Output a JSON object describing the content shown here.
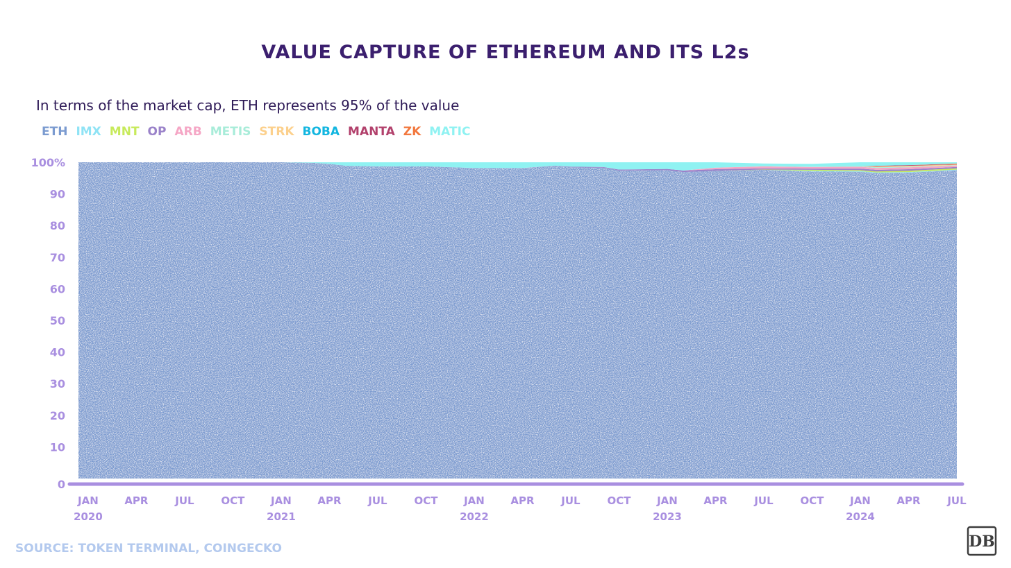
{
  "title": "VALUE CAPTURE OF ETHEREUM AND ITS L2s",
  "subtitle": "In terms of the market cap, ETH represents 95% of the value",
  "source": "SOURCE: TOKEN TERMINAL, COINGECKO",
  "logo": "DB",
  "colors": {
    "ETH": "#7b9bd0",
    "IMX": "#8fe3f5",
    "MNT": "#c7ea5b",
    "OP": "#9a82c9",
    "ARB": "#f5a6c5",
    "METIS": "#a8ecd9",
    "STRK": "#fcd08c",
    "BOBA": "#13b6e0",
    "MANTA": "#b2416c",
    "ZK": "#f2783e",
    "MATIC": "#8ff2f2",
    "axis": "#a98fe0",
    "title": "#3b1f6e"
  },
  "chart_data": {
    "type": "area",
    "stacked": true,
    "title": "VALUE CAPTURE OF ETHEREUM AND ITS L2s",
    "subtitle": "In terms of the market cap, ETH represents 95% of the value",
    "y_tick_labels": [
      "0",
      "10",
      "20",
      "30",
      "40",
      "50",
      "60",
      "70",
      "80",
      "90",
      "100%"
    ],
    "ylim": [
      0,
      100
    ],
    "x_ticks": [
      {
        "t": 0.0,
        "label": "JAN",
        "year": "2020"
      },
      {
        "t": 0.25,
        "label": "APR",
        "year": ""
      },
      {
        "t": 0.5,
        "label": "JUL",
        "year": ""
      },
      {
        "t": 0.75,
        "label": "OCT",
        "year": ""
      },
      {
        "t": 1.0,
        "label": "JAN",
        "year": "2021"
      },
      {
        "t": 1.25,
        "label": "APR",
        "year": ""
      },
      {
        "t": 1.5,
        "label": "JUL",
        "year": ""
      },
      {
        "t": 1.75,
        "label": "OCT",
        "year": ""
      },
      {
        "t": 2.0,
        "label": "JAN",
        "year": "2022"
      },
      {
        "t": 2.25,
        "label": "APR",
        "year": ""
      },
      {
        "t": 2.5,
        "label": "JUL",
        "year": ""
      },
      {
        "t": 2.75,
        "label": "OCT",
        "year": ""
      },
      {
        "t": 3.0,
        "label": "JAN",
        "year": "2023"
      },
      {
        "t": 3.25,
        "label": "APR",
        "year": ""
      },
      {
        "t": 3.5,
        "label": "JUL",
        "year": ""
      },
      {
        "t": 3.75,
        "label": "OCT",
        "year": ""
      },
      {
        "t": 4.0,
        "label": "JAN",
        "year": "2024"
      },
      {
        "t": 4.25,
        "label": "APR",
        "year": ""
      },
      {
        "t": 4.5,
        "label": "JUL",
        "year": ""
      }
    ],
    "x": [
      "2019-12",
      "2020-01",
      "2020-04",
      "2020-07",
      "2020-10",
      "2021-01",
      "2021-03",
      "2021-04",
      "2021-05",
      "2021-07",
      "2021-10",
      "2022-01",
      "2022-04",
      "2022-06",
      "2022-07",
      "2022-09",
      "2022-10",
      "2023-01",
      "2023-02",
      "2023-04",
      "2023-07",
      "2023-10",
      "2024-01",
      "2024-02",
      "2024-04",
      "2024-07"
    ],
    "series": [
      {
        "name": "ETH",
        "values": [
          100,
          100,
          100,
          100,
          100,
          100,
          99.8,
          99.5,
          98.9,
          98.7,
          98.7,
          98.2,
          98.2,
          98.8,
          98.4,
          98.3,
          97.4,
          97.5,
          96.9,
          97.3,
          97.6,
          97.1,
          97.0,
          96.6,
          96.7,
          97.5
        ]
      },
      {
        "name": "IMX",
        "values": [
          0,
          0,
          0,
          0,
          0,
          0,
          0,
          0,
          0,
          0,
          0,
          0,
          0,
          0,
          0,
          0,
          0,
          0,
          0,
          0,
          0,
          0.2,
          0.2,
          0.2,
          0.2,
          0.2
        ]
      },
      {
        "name": "MNT",
        "values": [
          0,
          0,
          0,
          0,
          0,
          0,
          0,
          0,
          0,
          0,
          0,
          0,
          0,
          0,
          0,
          0,
          0,
          0,
          0,
          0,
          0.1,
          0.3,
          0.3,
          0.3,
          0.4,
          0.4
        ]
      },
      {
        "name": "OP",
        "values": [
          0,
          0,
          0,
          0,
          0,
          0,
          0,
          0,
          0,
          0,
          0,
          0,
          0,
          0.1,
          0.2,
          0.2,
          0.3,
          0.4,
          0.5,
          0.5,
          0.4,
          0.4,
          0.5,
          0.5,
          0.5,
          0.4
        ]
      },
      {
        "name": "ARB",
        "values": [
          0,
          0,
          0,
          0,
          0,
          0,
          0,
          0,
          0,
          0,
          0,
          0,
          0,
          0,
          0,
          0,
          0,
          0,
          0,
          0.5,
          0.6,
          0.5,
          0.6,
          0.6,
          0.6,
          0.5
        ]
      },
      {
        "name": "METIS",
        "values": [
          0,
          0,
          0,
          0,
          0,
          0,
          0,
          0,
          0,
          0,
          0,
          0,
          0,
          0,
          0,
          0,
          0,
          0,
          0,
          0,
          0.1,
          0.1,
          0.2,
          0.2,
          0.2,
          0.1
        ]
      },
      {
        "name": "STRK",
        "values": [
          0,
          0,
          0,
          0,
          0,
          0,
          0,
          0,
          0,
          0,
          0,
          0,
          0,
          0,
          0,
          0,
          0,
          0,
          0,
          0,
          0,
          0,
          0,
          0.3,
          0.3,
          0.2
        ]
      },
      {
        "name": "BOBA",
        "values": [
          0,
          0,
          0,
          0,
          0,
          0,
          0,
          0,
          0,
          0,
          0,
          0,
          0,
          0,
          0,
          0,
          0,
          0,
          0,
          0,
          0,
          0,
          0,
          0,
          0,
          0
        ]
      },
      {
        "name": "MANTA",
        "values": [
          0,
          0,
          0,
          0,
          0,
          0,
          0,
          0,
          0,
          0,
          0,
          0,
          0,
          0,
          0,
          0,
          0,
          0,
          0,
          0,
          0,
          0,
          0,
          0.2,
          0.2,
          0.1
        ]
      },
      {
        "name": "ZK",
        "values": [
          0,
          0,
          0,
          0,
          0,
          0,
          0,
          0,
          0,
          0,
          0,
          0,
          0,
          0,
          0,
          0,
          0,
          0,
          0,
          0,
          0,
          0,
          0,
          0,
          0,
          0.2
        ]
      },
      {
        "name": "MATIC",
        "values": [
          0,
          0,
          0,
          0,
          0,
          0,
          0.2,
          0.5,
          1.1,
          1.3,
          1.3,
          1.8,
          1.8,
          1.1,
          1.4,
          1.5,
          2.3,
          2.1,
          2.6,
          1.7,
          0.8,
          0.9,
          1.2,
          1.1,
          0.9,
          0.4
        ]
      }
    ],
    "legend": [
      "ETH",
      "IMX",
      "MNT",
      "OP",
      "ARB",
      "METIS",
      "STRK",
      "BOBA",
      "MANTA",
      "ZK",
      "MATIC"
    ],
    "legend_position": "top-left",
    "grid": false
  }
}
